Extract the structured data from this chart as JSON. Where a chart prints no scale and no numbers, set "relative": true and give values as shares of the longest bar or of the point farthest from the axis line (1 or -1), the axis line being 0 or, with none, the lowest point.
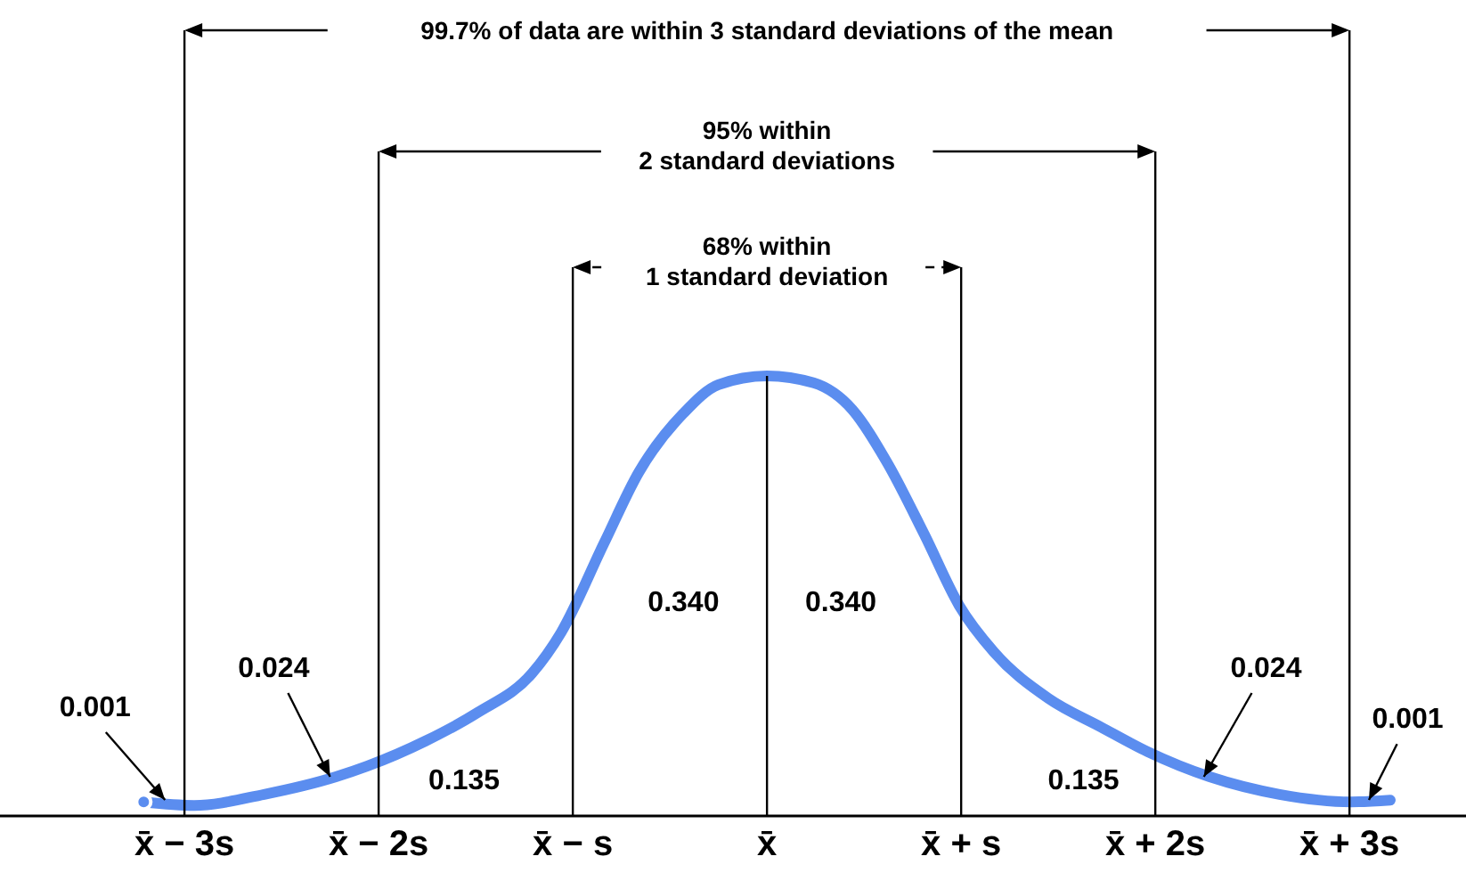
{
  "chart_data": {
    "type": "line",
    "relative": true,
    "x": [
      -3.21,
      -2.95,
      -2.59,
      -2.22,
      -2.06,
      -1.76,
      -1.49,
      -1.21,
      -1.06,
      -0.84,
      -0.66,
      -0.43,
      -0.25,
      0,
      0.24,
      0.44,
      0.62,
      0.81,
      0.99,
      1.17,
      1.45,
      1.72,
      1.96,
      2.28,
      2.64,
      3.01,
      3.21
    ],
    "series": [
      {
        "color": "#5b8def",
        "values": [
          0.032,
          0.024,
          0.049,
          0.089,
          0.113,
          0.17,
          0.235,
          0.324,
          0.417,
          0.619,
          0.781,
          0.915,
          0.98,
          1,
          0.984,
          0.923,
          0.802,
          0.64,
          0.478,
          0.372,
          0.267,
          0.202,
          0.146,
          0.089,
          0.049,
          0.032,
          0.036
        ]
      }
    ],
    "xlim": [
      -3.95,
      3.6
    ],
    "xticks": [
      {
        "value": -3,
        "label": "x̄ − 3s"
      },
      {
        "value": -2,
        "label": "x̄ − 2s"
      },
      {
        "value": -1,
        "label": "x̄ − s"
      },
      {
        "value": 0,
        "label": "x̄"
      },
      {
        "value": 1,
        "label": "x̄ + s"
      },
      {
        "value": 2,
        "label": "x̄ + 2s"
      },
      {
        "value": 3,
        "label": "x̄ + 3s"
      }
    ],
    "marker": "none",
    "line_style": "solid",
    "ref_lines": [
      {
        "axis": "x",
        "value": -3,
        "color": "#000000"
      },
      {
        "axis": "x",
        "value": -2,
        "color": "#000000"
      },
      {
        "axis": "x",
        "value": -1,
        "color": "#000000"
      },
      {
        "axis": "x",
        "value": 0,
        "color": "#000000"
      },
      {
        "axis": "x",
        "value": 1,
        "color": "#000000"
      },
      {
        "axis": "x",
        "value": 2,
        "color": "#000000"
      },
      {
        "axis": "x",
        "value": 3,
        "color": "#000000"
      }
    ],
    "annotations": [
      "99.7% of data are within 3 standard deviations of the mean",
      "95% within\n2 standard deviations",
      "68% within\n1 standard deviation",
      "0.340",
      "0.340",
      "0.135",
      "0.135",
      "0.024",
      "0.024",
      "0.001",
      "0.001"
    ]
  }
}
